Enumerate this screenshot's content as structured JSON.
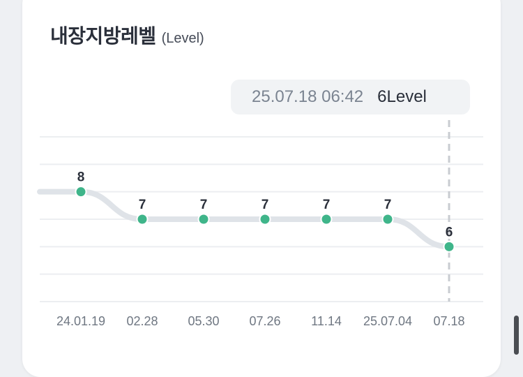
{
  "card": {
    "title": "내장지방레벨",
    "subtitle": "(Level)"
  },
  "tooltip": {
    "date": "25.07.18 06:42",
    "value": "6Level"
  },
  "colors": {
    "point": "#3fb58a",
    "line": "#dfe3e8",
    "grid": "#eceef1",
    "cursor": "#c9ccd1"
  },
  "chart_data": {
    "type": "line",
    "categories": [
      "24.01.19",
      "02.28",
      "05.30",
      "07.26",
      "11.14",
      "25.07.04",
      "07.18"
    ],
    "values": [
      8,
      7,
      7,
      7,
      7,
      7,
      6
    ],
    "data_labels": [
      "8",
      "7",
      "7",
      "7",
      "7",
      "7",
      "6"
    ],
    "leading_value": 8,
    "ylim": [
      4,
      10
    ],
    "grid": true,
    "highlight_index": 6
  }
}
